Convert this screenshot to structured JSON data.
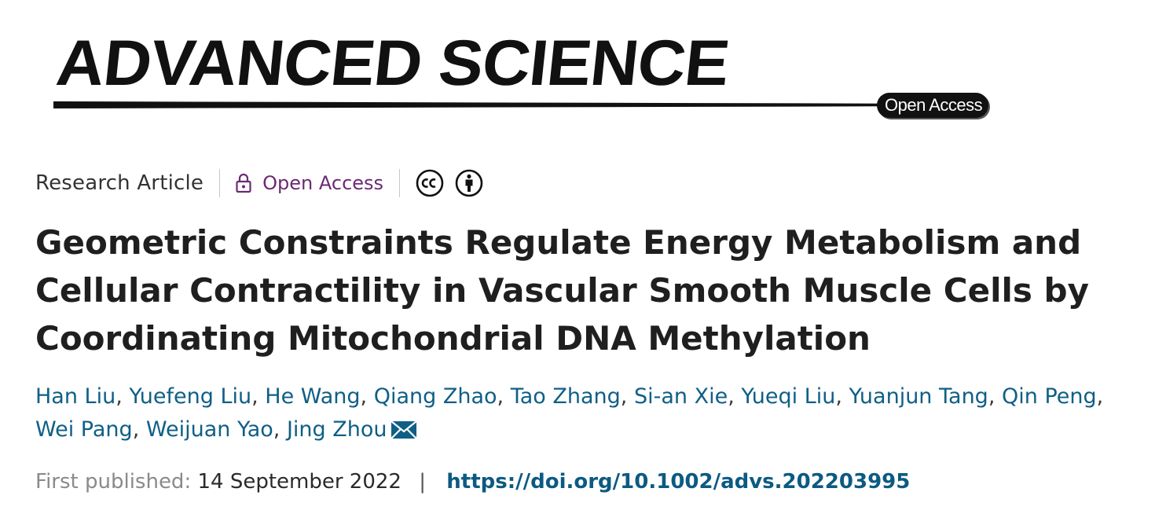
{
  "journal": {
    "name": "ADVANCED SCIENCE",
    "open_access_tag": "Open Access"
  },
  "meta": {
    "article_type": "Research Article",
    "access_label": "Open Access",
    "license_icons": [
      "cc-icon",
      "attribution-icon"
    ]
  },
  "article": {
    "title": "Geometric Constraints Regulate Energy Metabolism and Cellular Contractility in Vascular Smooth Muscle Cells by Coordinating Mitochondrial DNA Methylation",
    "authors": [
      "Han Liu",
      "Yuefeng Liu",
      "He Wang",
      "Qiang Zhao",
      "Tao Zhang",
      "Si-an Xie",
      "Yueqi Liu",
      "Yuanjun Tang",
      "Qin Peng",
      "Wei Pang",
      "Weijuan Yao",
      "Jing Zhou"
    ],
    "corresponding_author": "Jing Zhou"
  },
  "publication": {
    "first_published_label": "First published:",
    "date": "14 September 2022",
    "separator": "|",
    "doi": "https://doi.org/10.1002/advs.202203995"
  },
  "colors": {
    "open_access_purple": "#6b2a73",
    "link_blue": "#0f5f86",
    "text_dark": "#1f1f1f"
  }
}
